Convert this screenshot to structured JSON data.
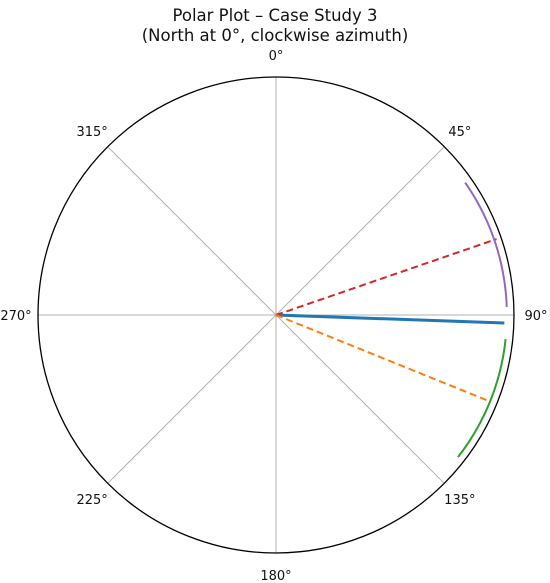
{
  "chart_data": {
    "type": "polar",
    "title": "Polar Plot – Case Study 3",
    "subtitle": "(North at 0°, clockwise azimuth)",
    "orientation": {
      "zero": "north",
      "direction": "clockwise"
    },
    "r_range": [
      0,
      1
    ],
    "grid": true,
    "angle_ticks": [
      0,
      45,
      90,
      135,
      180,
      225,
      270,
      315
    ],
    "angle_tick_labels": [
      "0°",
      "45°",
      "90°",
      "135°",
      "180°",
      "225°",
      "270°",
      "315°"
    ],
    "series": [
      {
        "style": "solid",
        "kind": "radial",
        "color": "#1f77b4",
        "azimuth": 92,
        "r": [
          0,
          0.96
        ]
      },
      {
        "style": "dashed",
        "kind": "radial",
        "color": "#d62728",
        "azimuth": 71,
        "r": [
          0,
          0.98
        ]
      },
      {
        "style": "dashed",
        "kind": "radial",
        "color": "#ff7f0e",
        "azimuth": 112,
        "r": [
          0,
          0.96
        ]
      },
      {
        "style": "solid",
        "kind": "arc",
        "color": "#9467bd",
        "azimuth": [
          55,
          88
        ],
        "r": 0.97
      },
      {
        "style": "solid",
        "kind": "arc",
        "color": "#2ca02c",
        "azimuth": [
          96,
          128
        ],
        "r": 0.97
      }
    ]
  }
}
